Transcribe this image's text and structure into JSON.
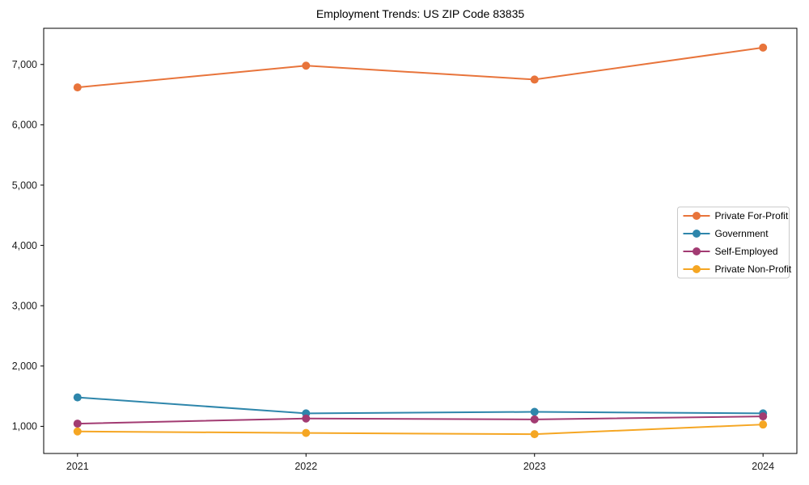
{
  "chart_data": {
    "type": "line",
    "title": "Employment Trends: US ZIP Code 83835",
    "xlabel": "",
    "ylabel": "",
    "x": [
      "2021",
      "2022",
      "2023",
      "2024"
    ],
    "series": [
      {
        "name": "Private For-Profit",
        "color": "#E8743B",
        "values": [
          6620,
          6980,
          6750,
          7280
        ]
      },
      {
        "name": "Government",
        "color": "#2E86AB",
        "values": [
          1480,
          1215,
          1240,
          1215
        ]
      },
      {
        "name": "Self-Employed",
        "color": "#A23B72",
        "values": [
          1045,
          1130,
          1115,
          1165
        ]
      },
      {
        "name": "Private Non-Profit",
        "color": "#F5A623",
        "values": [
          915,
          890,
          870,
          1030
        ]
      }
    ],
    "ylim": [
      550,
      7600
    ],
    "yticks": [
      1000,
      2000,
      3000,
      4000,
      5000,
      6000,
      7000
    ],
    "ytick_format": "thousands-comma",
    "grid": false,
    "legend_position": "right-middle",
    "marker": "circle",
    "axis_color": "#000000",
    "tick_label_color": "#1a1a1a",
    "legend_border_color": "#c9c9c9",
    "legend_background": "#ffffff"
  }
}
